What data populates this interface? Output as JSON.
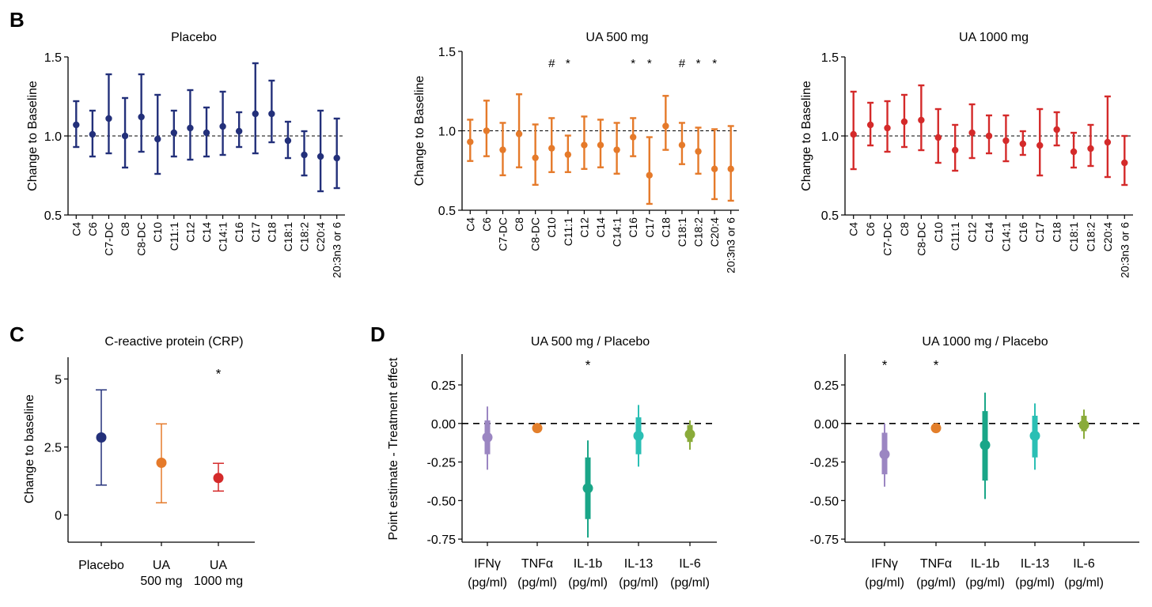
{
  "panel_letters": {
    "b": "B",
    "c": "C",
    "d": "D"
  },
  "colors": {
    "placebo": "#23307a",
    "ua500": "#e57a2a",
    "ua1000": "#d42a2a",
    "ifng": "#9b86c2",
    "tnfa": "#e37f2b",
    "il1b": "#1aa688",
    "il13": "#2bbfb4",
    "il6": "#8aab3a"
  },
  "chart_data": [
    {
      "id": "placebo",
      "type": "scatter",
      "title": "Placebo",
      "ylabel": "Change to Baseline",
      "ylim": [
        0.5,
        1.5
      ],
      "yticks": [
        "0.5",
        "1.0",
        "1.5"
      ],
      "ytick_values": [
        0.5,
        1.0,
        1.5
      ],
      "reference_line": 1.0,
      "categories": [
        "C4",
        "C6",
        "C7-DC",
        "C8",
        "C8-DC",
        "C10",
        "C11:1",
        "C12",
        "C14",
        "C14:1",
        "C16",
        "C17",
        "C18",
        "C18:1",
        "C18:2",
        "C20:4",
        "20:3n3 or 6"
      ],
      "values": [
        1.07,
        1.01,
        1.11,
        1.0,
        1.12,
        0.98,
        1.02,
        1.05,
        1.02,
        1.06,
        1.03,
        1.14,
        1.14,
        0.97,
        0.88,
        0.87,
        0.86
      ],
      "lower": [
        0.93,
        0.87,
        0.89,
        0.8,
        0.9,
        0.76,
        0.87,
        0.85,
        0.87,
        0.88,
        0.93,
        0.89,
        0.96,
        0.86,
        0.75,
        0.65,
        0.67
      ],
      "upper": [
        1.22,
        1.16,
        1.39,
        1.24,
        1.39,
        1.26,
        1.16,
        1.29,
        1.18,
        1.28,
        1.15,
        1.46,
        1.35,
        1.09,
        1.03,
        1.16,
        1.11
      ],
      "annotations": []
    },
    {
      "id": "ua500",
      "type": "scatter",
      "title": "UA 500 mg",
      "ylabel": "Change to Baseline",
      "ylim": [
        0.5,
        1.5
      ],
      "yticks": [
        "0.5",
        "1.0",
        "1.5"
      ],
      "ytick_values": [
        0.5,
        1.0,
        1.5
      ],
      "reference_line": 1.0,
      "categories": [
        "C4",
        "C6",
        "C7-DC",
        "C8",
        "C8-DC",
        "C10",
        "C11:1",
        "C12",
        "C14",
        "C14:1",
        "C16",
        "C17",
        "C18",
        "C18:1",
        "C18:2",
        "C20:4",
        "20:3n3 or 6"
      ],
      "values": [
        0.93,
        1.0,
        0.88,
        0.98,
        0.83,
        0.89,
        0.85,
        0.91,
        0.91,
        0.88,
        0.96,
        0.72,
        1.03,
        0.91,
        0.87,
        0.76,
        0.76
      ],
      "lower": [
        0.81,
        0.84,
        0.72,
        0.77,
        0.66,
        0.74,
        0.74,
        0.76,
        0.77,
        0.73,
        0.84,
        0.54,
        0.88,
        0.79,
        0.73,
        0.57,
        0.56
      ],
      "upper": [
        1.07,
        1.19,
        1.05,
        1.23,
        1.04,
        1.08,
        0.97,
        1.09,
        1.07,
        1.05,
        1.08,
        0.96,
        1.22,
        1.05,
        1.02,
        1.01,
        1.03
      ],
      "annotations": [
        {
          "text": "#",
          "category": "C10",
          "value": 1.43
        },
        {
          "text": "*",
          "category": "C11:1",
          "value": 1.43
        },
        {
          "text": "*",
          "category": "C16",
          "value": 1.43
        },
        {
          "text": "*",
          "category": "C17",
          "value": 1.43
        },
        {
          "text": "#",
          "category": "C18:1",
          "value": 1.43
        },
        {
          "text": "*",
          "category": "C18:2",
          "value": 1.43
        },
        {
          "text": "*",
          "category": "C20:4",
          "value": 1.43
        }
      ]
    },
    {
      "id": "ua1000",
      "type": "scatter",
      "title": "UA 1000 mg",
      "ylabel": "Change to Baseline",
      "ylim": [
        0.5,
        1.5
      ],
      "yticks": [
        "0.5",
        "1.0",
        "1.5"
      ],
      "ytick_values": [
        0.5,
        1.0,
        1.5
      ],
      "reference_line": 1.0,
      "categories": [
        "C4",
        "C6",
        "C7-DC",
        "C8",
        "C8-DC",
        "C10",
        "C11:1",
        "C12",
        "C14",
        "C14:1",
        "C16",
        "C17",
        "C18",
        "C18:1",
        "C18:2",
        "C20:4",
        "20:3n3 or 6"
      ],
      "values": [
        1.01,
        1.07,
        1.05,
        1.09,
        1.1,
        0.99,
        0.91,
        1.02,
        1.0,
        0.97,
        0.95,
        0.94,
        1.04,
        0.9,
        0.92,
        0.96,
        0.83
      ],
      "lower": [
        0.79,
        0.94,
        0.9,
        0.93,
        0.91,
        0.83,
        0.78,
        0.86,
        0.89,
        0.84,
        0.88,
        0.75,
        0.94,
        0.8,
        0.81,
        0.74,
        0.69
      ],
      "upper": [
        1.28,
        1.21,
        1.22,
        1.26,
        1.32,
        1.17,
        1.07,
        1.2,
        1.13,
        1.13,
        1.03,
        1.17,
        1.15,
        1.02,
        1.07,
        1.25,
        1.0
      ],
      "annotations": []
    },
    {
      "id": "crp",
      "type": "scatter",
      "title": "C-reactive protein (CRP)",
      "ylabel": "Change to baseline",
      "ylim": [
        -1.0,
        5.8
      ],
      "yticks": [
        "0",
        "2.5",
        "5"
      ],
      "ytick_values": [
        0,
        2.5,
        5
      ],
      "categories": [
        [
          "Placebo"
        ],
        [
          "UA",
          "500 mg"
        ],
        [
          "UA",
          "1000 mg"
        ]
      ],
      "values": [
        2.85,
        1.92,
        1.36
      ],
      "lower": [
        1.1,
        0.45,
        0.88
      ],
      "upper": [
        4.6,
        3.35,
        1.9
      ],
      "annotations": [
        {
          "text": "*",
          "category_index": 2,
          "value": 5.2
        }
      ]
    },
    {
      "id": "cyt500",
      "type": "scatter",
      "title": "UA 500 mg / Placebo",
      "ylabel": "Point estimate - Treatment effect",
      "ylim": [
        -0.77,
        0.45
      ],
      "yticks": [
        "0.25",
        "0.00",
        "-0.25",
        "-0.50",
        "-0.75"
      ],
      "ytick_values": [
        0.25,
        0.0,
        -0.25,
        -0.5,
        -0.75
      ],
      "reference_line": 0.0,
      "categories": [
        [
          "IFNγ",
          "(pg/ml)"
        ],
        [
          "TNFα",
          "(pg/ml)"
        ],
        [
          "IL-1b",
          "(pg/ml)"
        ],
        [
          "IL-13",
          "(pg/ml)"
        ],
        [
          "IL-6",
          "(pg/ml)"
        ]
      ],
      "values": [
        -0.09,
        -0.03,
        -0.42,
        -0.08,
        -0.07
      ],
      "ci_inner": [
        [
          -0.2,
          0.02
        ],
        [
          -0.045,
          -0.02
        ],
        [
          -0.62,
          -0.22
        ],
        [
          -0.2,
          0.04
        ],
        [
          -0.12,
          -0.01
        ]
      ],
      "ci_outer": [
        [
          -0.3,
          0.11
        ],
        [
          -0.05,
          -0.02
        ],
        [
          -0.74,
          -0.11
        ],
        [
          -0.28,
          0.12
        ],
        [
          -0.17,
          0.02
        ]
      ],
      "annotations": [
        {
          "text": "*",
          "category_index": 2,
          "value": 0.38
        }
      ]
    },
    {
      "id": "cyt1000",
      "type": "scatter",
      "title": "UA 1000 mg / Placebo",
      "ylabel": "",
      "ylim": [
        -0.77,
        0.45
      ],
      "yticks": [
        "0.25",
        "0.00",
        "-0.25",
        "-0.50",
        "-0.75"
      ],
      "ytick_values": [
        0.25,
        0.0,
        -0.25,
        -0.5,
        -0.75
      ],
      "reference_line": 0.0,
      "categories": [
        [
          "IFNγ",
          "(pg/ml)"
        ],
        [
          "TNFα",
          "(pg/ml)"
        ],
        [
          "IL-1b",
          "(pg/ml)"
        ],
        [
          "IL-13",
          "(pg/ml)"
        ],
        [
          "IL-6",
          "(pg/ml)"
        ]
      ],
      "values": [
        -0.2,
        -0.03,
        -0.14,
        -0.08,
        -0.01
      ],
      "ci_inner": [
        [
          -0.33,
          -0.06
        ],
        [
          -0.045,
          -0.02
        ],
        [
          -0.37,
          0.08
        ],
        [
          -0.22,
          0.05
        ],
        [
          -0.05,
          0.05
        ]
      ],
      "ci_outer": [
        [
          -0.41,
          0.0
        ],
        [
          -0.05,
          -0.02
        ],
        [
          -0.49,
          0.2
        ],
        [
          -0.3,
          0.13
        ],
        [
          -0.1,
          0.09
        ]
      ],
      "annotations": [
        {
          "text": "*",
          "category_index": 0,
          "value": 0.38
        },
        {
          "text": "*",
          "category_index": 1,
          "value": 0.38
        }
      ]
    }
  ]
}
